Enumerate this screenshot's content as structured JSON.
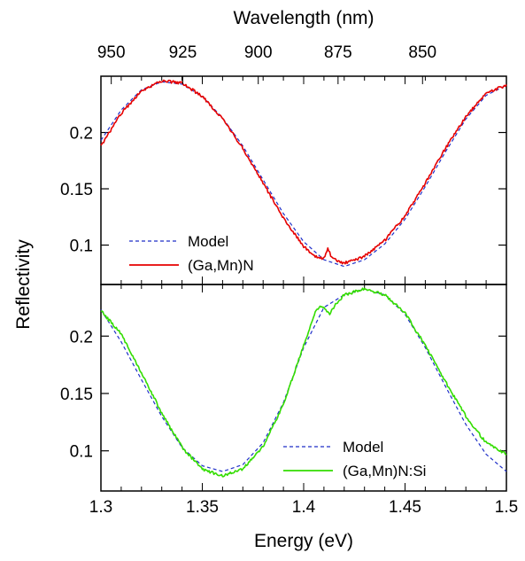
{
  "chart_data": {
    "type": "line",
    "xlabel": "Energy (eV)",
    "x2label": "Wavelength (nm)",
    "ylabel": "Reflectivity",
    "xlim": [
      1.3,
      1.5
    ],
    "x_ticks": [
      1.3,
      1.35,
      1.4,
      1.45,
      1.5
    ],
    "x_tick_labels": [
      "1.3",
      "1.35",
      "1.4",
      "1.45",
      "1.5"
    ],
    "x2_ticks_nm": [
      950,
      925,
      900,
      875,
      850
    ],
    "x2_tick_labels": [
      "950",
      "925",
      "900",
      "875",
      "850"
    ],
    "grid": false,
    "panels": [
      {
        "ylim": [
          0.065,
          0.25
        ],
        "y_ticks": [
          0.1,
          0.15,
          0.2
        ],
        "y_tick_labels": [
          "0.1",
          "0.15",
          "0.2"
        ],
        "legend_position": "bottom-left",
        "series": [
          {
            "name": "Model",
            "color": "#1f2fc8",
            "style": "dashed",
            "x": [
              1.3,
              1.31,
              1.32,
              1.33,
              1.34,
              1.35,
              1.36,
              1.37,
              1.38,
              1.39,
              1.4,
              1.41,
              1.42,
              1.43,
              1.44,
              1.45,
              1.46,
              1.47,
              1.48,
              1.49,
              1.5
            ],
            "y": [
              0.193,
              0.22,
              0.238,
              0.245,
              0.243,
              0.232,
              0.213,
              0.188,
              0.158,
              0.128,
              0.103,
              0.087,
              0.081,
              0.087,
              0.101,
              0.123,
              0.152,
              0.183,
              0.212,
              0.233,
              0.242
            ]
          },
          {
            "name": "(Ga,Mn)N",
            "color": "#e60000",
            "style": "solid",
            "x": [
              1.3,
              1.31,
              1.32,
              1.33,
              1.34,
              1.35,
              1.36,
              1.37,
              1.38,
              1.39,
              1.4,
              1.405,
              1.41,
              1.412,
              1.414,
              1.418,
              1.42,
              1.43,
              1.44,
              1.45,
              1.46,
              1.47,
              1.48,
              1.49,
              1.5
            ],
            "y": [
              0.188,
              0.217,
              0.237,
              0.246,
              0.244,
              0.232,
              0.212,
              0.186,
              0.155,
              0.124,
              0.099,
              0.09,
              0.088,
              0.097,
              0.088,
              0.085,
              0.084,
              0.09,
              0.104,
              0.126,
              0.155,
              0.186,
              0.214,
              0.235,
              0.242
            ]
          }
        ]
      },
      {
        "ylim": [
          0.065,
          0.245
        ],
        "y_ticks": [
          0.1,
          0.15,
          0.2
        ],
        "y_tick_labels": [
          "0.1",
          "0.15",
          "0.2"
        ],
        "legend_position": "bottom-right",
        "series": [
          {
            "name": "Model",
            "color": "#1f2fc8",
            "style": "dashed",
            "x": [
              1.3,
              1.31,
              1.32,
              1.33,
              1.34,
              1.35,
              1.36,
              1.37,
              1.38,
              1.39,
              1.4,
              1.41,
              1.42,
              1.43,
              1.44,
              1.45,
              1.46,
              1.47,
              1.48,
              1.49,
              1.5
            ],
            "y": [
              0.223,
              0.195,
              0.162,
              0.13,
              0.103,
              0.087,
              0.082,
              0.088,
              0.107,
              0.142,
              0.19,
              0.225,
              0.236,
              0.241,
              0.236,
              0.219,
              0.19,
              0.156,
              0.123,
              0.097,
              0.082
            ]
          },
          {
            "name": "(Ga,Mn)N:Si",
            "color": "#33dd00",
            "style": "solid",
            "x": [
              1.3,
              1.31,
              1.32,
              1.33,
              1.34,
              1.35,
              1.36,
              1.37,
              1.38,
              1.39,
              1.4,
              1.405,
              1.408,
              1.41,
              1.413,
              1.415,
              1.42,
              1.43,
              1.44,
              1.45,
              1.46,
              1.47,
              1.48,
              1.49,
              1.5
            ],
            "y": [
              0.222,
              0.202,
              0.168,
              0.133,
              0.103,
              0.084,
              0.078,
              0.084,
              0.104,
              0.14,
              0.192,
              0.218,
              0.227,
              0.225,
              0.219,
              0.226,
              0.236,
              0.241,
              0.236,
              0.22,
              0.192,
              0.16,
              0.13,
              0.107,
              0.097
            ]
          }
        ]
      }
    ]
  }
}
